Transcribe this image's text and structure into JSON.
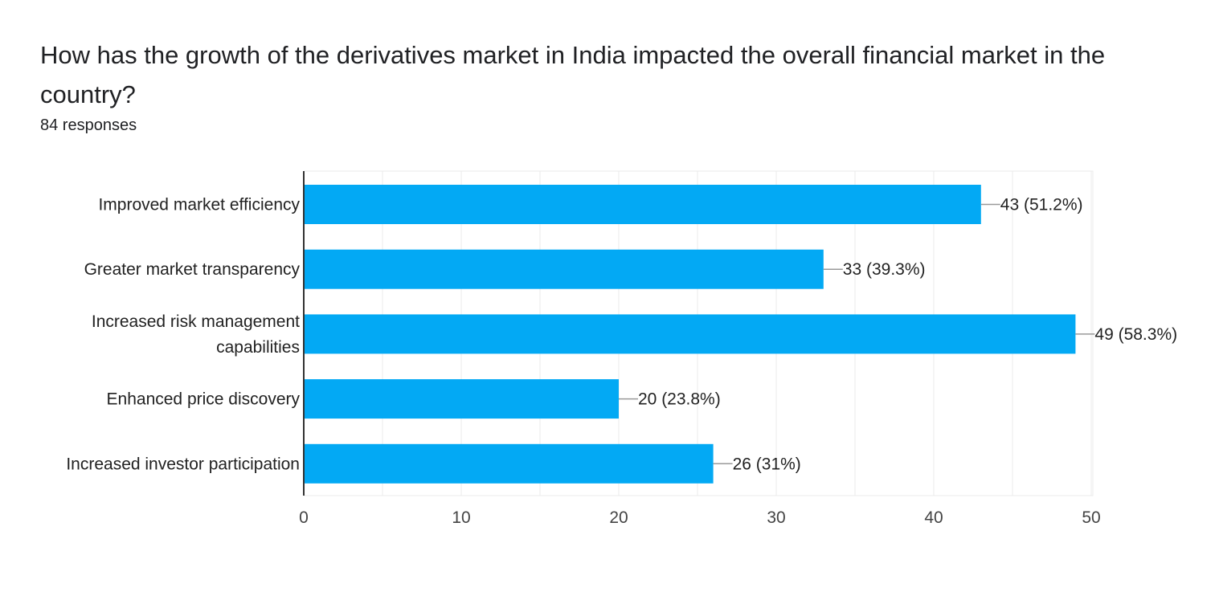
{
  "question": {
    "title": "How has the growth of the derivatives market in India impacted the overall financial market in the country?",
    "responses": "84 responses"
  },
  "colors": {
    "bar": "#03a9f4",
    "grid": "#ebebeb",
    "axis": "#333333",
    "leader": "#999999"
  },
  "chart_data": {
    "type": "bar",
    "orientation": "horizontal",
    "title": "How has the growth of the derivatives market in India impacted the overall financial market in the country?",
    "categories": [
      [
        "Improved market efficiency"
      ],
      [
        "Greater market transparency"
      ],
      [
        "Increased risk management",
        "capabilities"
      ],
      [
        "Enhanced price discovery"
      ],
      [
        "Increased investor participation"
      ]
    ],
    "values": [
      43,
      33,
      49,
      20,
      26
    ],
    "data_labels": [
      "43 (51.2%)",
      "33 (39.3%)",
      "49 (58.3%)",
      "20 (23.8%)",
      "26 (31%)"
    ],
    "xlim": [
      0,
      50
    ],
    "xticks": [
      0,
      10,
      20,
      30,
      40,
      50
    ],
    "xlabel": "",
    "ylabel": "",
    "grid": true
  }
}
